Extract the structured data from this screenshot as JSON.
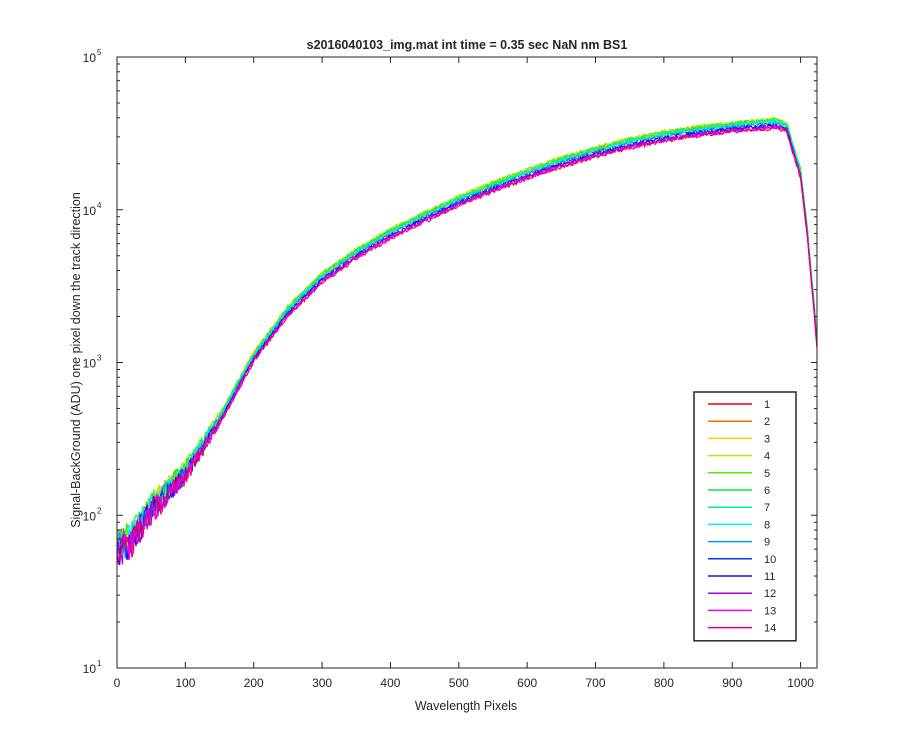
{
  "chart_data": {
    "type": "line",
    "title": "s2016040103_img.mat int time = 0.35 sec  NaN nm BS1",
    "xlabel": "Wavelength Pixels",
    "ylabel": "Signal-BackGround (ADU) one pixel down the track direction",
    "xlim": [
      0,
      1024
    ],
    "ylim": [
      10,
      100000
    ],
    "yscale": "log",
    "grid": false,
    "legend_position": "bottom-right",
    "x_ticks": [
      {
        "value": 0,
        "label": "0"
      },
      {
        "value": 100,
        "label": "100"
      },
      {
        "value": 200,
        "label": "200"
      },
      {
        "value": 300,
        "label": "300"
      },
      {
        "value": 400,
        "label": "400"
      },
      {
        "value": 500,
        "label": "500"
      },
      {
        "value": 600,
        "label": "600"
      },
      {
        "value": 700,
        "label": "700"
      },
      {
        "value": 800,
        "label": "800"
      },
      {
        "value": 900,
        "label": "900"
      },
      {
        "value": 1000,
        "label": "1000"
      }
    ],
    "y_ticks": [
      {
        "value": 10,
        "base": "10",
        "exp": "1"
      },
      {
        "value": 100,
        "base": "10",
        "exp": "2"
      },
      {
        "value": 1000,
        "base": "10",
        "exp": "3"
      },
      {
        "value": 10000,
        "base": "10",
        "exp": "4"
      },
      {
        "value": 100000,
        "base": "10",
        "exp": "5"
      }
    ],
    "x": [
      0,
      20,
      50,
      100,
      150,
      200,
      250,
      300,
      350,
      400,
      450,
      500,
      550,
      600,
      650,
      700,
      750,
      800,
      850,
      900,
      940,
      965,
      980,
      1000,
      1010,
      1020,
      1024
    ],
    "base_values": [
      60,
      68,
      110,
      190,
      420,
      1080,
      2150,
      3550,
      5100,
      6900,
      8900,
      11300,
      14000,
      17000,
      20300,
      23700,
      27000,
      30000,
      32500,
      34500,
      35800,
      36500,
      34000,
      17000,
      7000,
      2200,
      1300
    ],
    "series": [
      {
        "name": "1",
        "color": "#e8000b",
        "scale": 1.02
      },
      {
        "name": "2",
        "color": "#ff6a00",
        "scale": 1.05
      },
      {
        "name": "3",
        "color": "#ffcc00",
        "scale": 1.07
      },
      {
        "name": "4",
        "color": "#b5f000",
        "scale": 1.08
      },
      {
        "name": "5",
        "color": "#55f000",
        "scale": 1.07
      },
      {
        "name": "6",
        "color": "#00ee44",
        "scale": 1.05
      },
      {
        "name": "7",
        "color": "#00eeaa",
        "scale": 1.04
      },
      {
        "name": "8",
        "color": "#00eeff",
        "scale": 1.03
      },
      {
        "name": "9",
        "color": "#0099ee",
        "scale": 1.0
      },
      {
        "name": "10",
        "color": "#0033ee",
        "scale": 0.98
      },
      {
        "name": "11",
        "color": "#3300ee",
        "scale": 0.97
      },
      {
        "name": "12",
        "color": "#aa00ee",
        "scale": 0.96
      },
      {
        "name": "13",
        "color": "#ff00ee",
        "scale": 0.95
      },
      {
        "name": "14",
        "color": "#ee0066",
        "scale": 0.94
      }
    ]
  }
}
